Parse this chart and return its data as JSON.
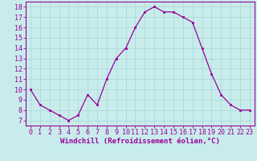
{
  "x": [
    0,
    1,
    2,
    3,
    4,
    5,
    6,
    7,
    8,
    9,
    10,
    11,
    12,
    13,
    14,
    15,
    16,
    17,
    18,
    19,
    20,
    21,
    22,
    23
  ],
  "y": [
    10,
    8.5,
    8,
    7.5,
    7,
    7.5,
    9.5,
    8.5,
    11,
    13,
    14,
    16,
    17.5,
    18,
    17.5,
    17.5,
    17,
    16.5,
    14,
    11.5,
    9.5,
    8.5,
    8,
    8
  ],
  "line_color": "#990099",
  "marker_color": "#990099",
  "bg_color": "#c8ecec",
  "grid_color": "#b0d8d8",
  "xlabel": "Windchill (Refroidissement éolien,°C)",
  "ylabel_ticks": [
    7,
    8,
    9,
    10,
    11,
    12,
    13,
    14,
    15,
    16,
    17,
    18
  ],
  "xlim": [
    -0.5,
    23.5
  ],
  "ylim": [
    6.5,
    18.5
  ],
  "xlabel_fontsize": 6.5,
  "tick_fontsize": 6.0
}
